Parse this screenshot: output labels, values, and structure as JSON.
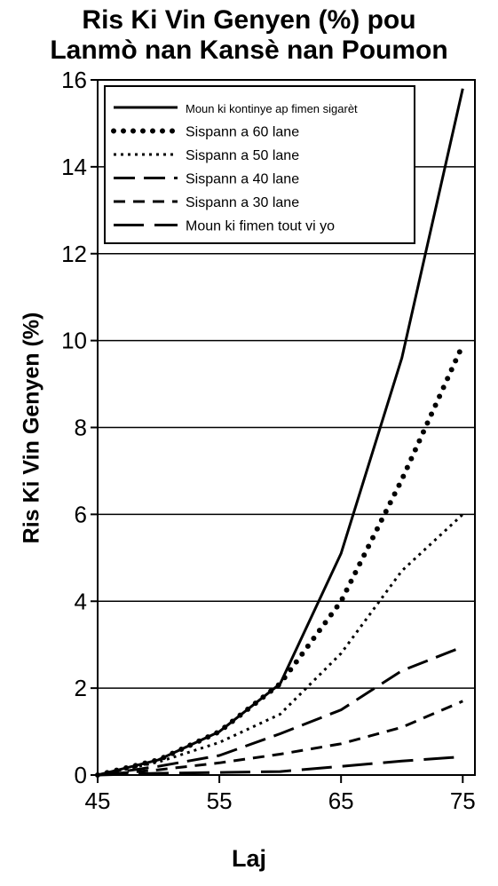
{
  "chart_data": {
    "type": "line",
    "title_line1": "Ris Ki Vin Genyen (%) pou",
    "title_line2": "Lanmò nan Kansè nan Poumon",
    "xlabel": "Laj",
    "ylabel": "Ris Ki Vin Genyen (%)",
    "xlim": [
      45,
      76
    ],
    "ylim": [
      0,
      16
    ],
    "xticks": [
      45,
      55,
      65,
      75
    ],
    "yticks": [
      0,
      2,
      4,
      6,
      8,
      10,
      12,
      14,
      16
    ],
    "grid": "horizontal",
    "legend_position": "top-left",
    "series": [
      {
        "name": "Moun ki kontinye ap fimen sigarèt",
        "style": "solid",
        "x": [
          45,
          50,
          55,
          60,
          65,
          70,
          75
        ],
        "y": [
          0,
          0.35,
          1.0,
          2.1,
          5.1,
          9.6,
          15.8
        ]
      },
      {
        "name": "Sispann a 60 lane",
        "style": "dots",
        "x": [
          45,
          50,
          55,
          60,
          65,
          70,
          75
        ],
        "y": [
          0,
          0.35,
          1.0,
          2.1,
          4.0,
          6.8,
          9.9
        ]
      },
      {
        "name": "Sispann a 50 lane",
        "style": "fine-dots",
        "x": [
          45,
          50,
          55,
          60,
          65,
          70,
          75
        ],
        "y": [
          0,
          0.3,
          0.75,
          1.4,
          2.8,
          4.7,
          6.0
        ]
      },
      {
        "name": "Sispann a 40 lane",
        "style": "long-dash",
        "x": [
          45,
          50,
          55,
          60,
          65,
          70,
          75
        ],
        "y": [
          0,
          0.2,
          0.45,
          0.95,
          1.5,
          2.4,
          2.95
        ]
      },
      {
        "name": "Sispann a 30 lane",
        "style": "dash",
        "x": [
          45,
          50,
          55,
          60,
          65,
          70,
          75
        ],
        "y": [
          0,
          0.12,
          0.28,
          0.48,
          0.72,
          1.1,
          1.7
        ]
      },
      {
        "name": "Moun ki fimen tout vi yo",
        "style": "long-dash-wide",
        "x": [
          45,
          50,
          55,
          60,
          65,
          70,
          75
        ],
        "y": [
          0,
          0.04,
          0.06,
          0.08,
          0.2,
          0.32,
          0.42
        ]
      }
    ]
  }
}
